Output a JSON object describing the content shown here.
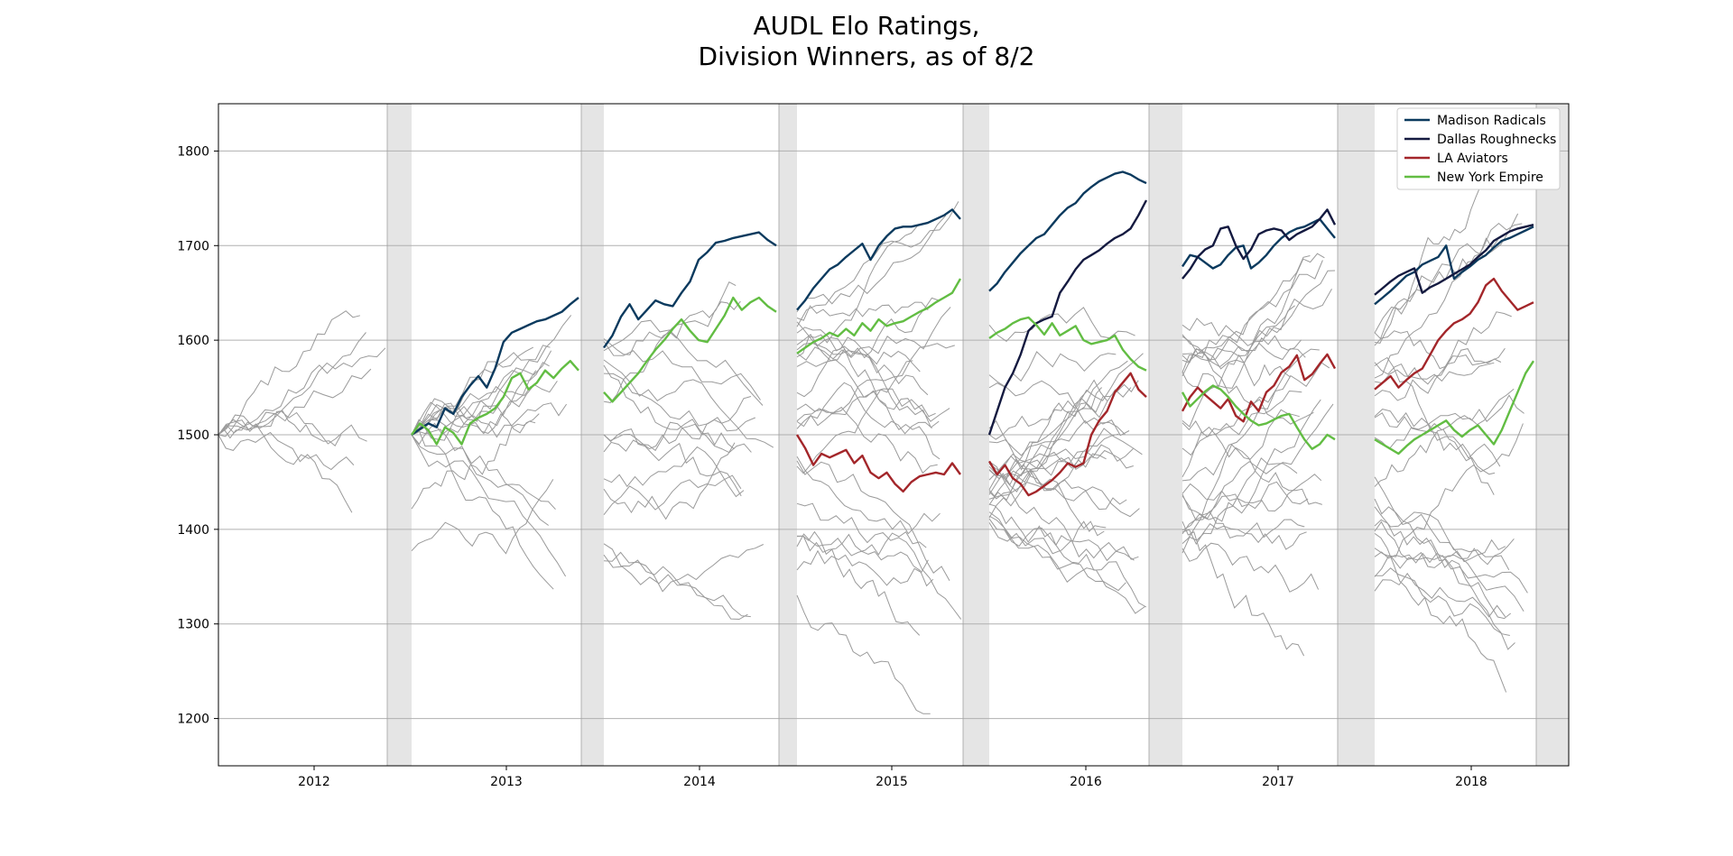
{
  "chart_data": {
    "type": "line",
    "title_lines": [
      "AUDL Elo Ratings,",
      "Division Winners, as of 8/2"
    ],
    "xlabel": "",
    "ylabel": "",
    "ylim": [
      1150,
      1850
    ],
    "y_ticks": [
      1200,
      1300,
      1400,
      1500,
      1600,
      1700,
      1800
    ],
    "seasons": [
      "2012",
      "2013",
      "2014",
      "2015",
      "2016",
      "2017",
      "2018"
    ],
    "grid": "horizontal",
    "legend_position": "top-right",
    "legend": [
      {
        "name": "Madison Radicals",
        "color": "#0b3a5e"
      },
      {
        "name": "Dallas Roughnecks",
        "color": "#141a40"
      },
      {
        "name": "LA Aviators",
        "color": "#a3262a"
      },
      {
        "name": "New York Empire",
        "color": "#62bd43"
      }
    ],
    "background_team_color": "#9a9a9a",
    "series": [
      {
        "name": "Madison Radicals",
        "season": "2013",
        "x": [
          0,
          0.1,
          0.15,
          0.2,
          0.25,
          0.3,
          0.35,
          0.4,
          0.45,
          0.5,
          0.55,
          0.6,
          0.65,
          0.7,
          0.75,
          0.8,
          0.85,
          0.9,
          0.95,
          1.0
        ],
        "y": [
          1500,
          1512,
          1508,
          1528,
          1522,
          1540,
          1552,
          1562,
          1550,
          1570,
          1598,
          1608,
          1612,
          1616,
          1620,
          1622,
          1626,
          1630,
          1638,
          1645
        ]
      },
      {
        "name": "Madison Radicals",
        "season": "2014",
        "x": [
          0,
          0.05,
          0.1,
          0.15,
          0.2,
          0.25,
          0.3,
          0.35,
          0.4,
          0.45,
          0.5,
          0.55,
          0.6,
          0.65,
          0.7,
          0.75,
          0.8,
          0.85,
          0.9,
          0.95,
          1.0
        ],
        "y": [
          1592,
          1605,
          1625,
          1638,
          1622,
          1632,
          1642,
          1638,
          1636,
          1650,
          1662,
          1685,
          1693,
          1703,
          1705,
          1708,
          1710,
          1712,
          1714,
          1706,
          1700
        ]
      },
      {
        "name": "Madison Radicals",
        "season": "2015",
        "x": [
          0,
          0.05,
          0.1,
          0.15,
          0.2,
          0.25,
          0.3,
          0.35,
          0.4,
          0.45,
          0.5,
          0.55,
          0.6,
          0.65,
          0.7,
          0.75,
          0.8,
          0.85,
          0.9,
          0.95,
          1.0
        ],
        "y": [
          1632,
          1642,
          1655,
          1665,
          1675,
          1680,
          1688,
          1695,
          1702,
          1685,
          1700,
          1710,
          1718,
          1720,
          1720,
          1722,
          1724,
          1728,
          1732,
          1738,
          1728
        ]
      },
      {
        "name": "Madison Radicals",
        "season": "2016",
        "x": [
          0,
          0.05,
          0.1,
          0.15,
          0.2,
          0.25,
          0.3,
          0.35,
          0.4,
          0.45,
          0.5,
          0.55,
          0.6,
          0.65,
          0.7,
          0.75,
          0.8,
          0.85,
          0.9,
          0.95,
          1.0
        ],
        "y": [
          1652,
          1660,
          1672,
          1682,
          1692,
          1700,
          1708,
          1712,
          1722,
          1732,
          1740,
          1745,
          1755,
          1762,
          1768,
          1772,
          1776,
          1778,
          1775,
          1770,
          1766
        ]
      },
      {
        "name": "Madison Radicals",
        "season": "2017",
        "x": [
          0,
          0.05,
          0.1,
          0.15,
          0.2,
          0.25,
          0.3,
          0.35,
          0.4,
          0.45,
          0.5,
          0.55,
          0.6,
          0.65,
          0.7,
          0.75,
          0.8,
          0.85,
          0.9,
          0.95,
          1.0
        ],
        "y": [
          1678,
          1690,
          1688,
          1682,
          1676,
          1680,
          1690,
          1698,
          1700,
          1676,
          1682,
          1690,
          1700,
          1708,
          1714,
          1718,
          1720,
          1724,
          1728,
          1718,
          1708
        ]
      },
      {
        "name": "Madison Radicals",
        "season": "2018",
        "x": [
          0,
          0.05,
          0.1,
          0.15,
          0.2,
          0.25,
          0.3,
          0.35,
          0.4,
          0.45,
          0.5,
          0.55,
          0.6,
          0.65,
          0.7,
          0.75,
          0.8,
          0.85,
          0.9,
          0.95,
          1.0
        ],
        "y": [
          1638,
          1645,
          1652,
          1660,
          1668,
          1672,
          1680,
          1684,
          1688,
          1700,
          1665,
          1672,
          1678,
          1685,
          1690,
          1698,
          1705,
          1708,
          1712,
          1716,
          1720
        ]
      },
      {
        "name": "Dallas Roughnecks",
        "season": "2016",
        "x": [
          0,
          0.05,
          0.1,
          0.15,
          0.2,
          0.25,
          0.3,
          0.35,
          0.4,
          0.45,
          0.5,
          0.55,
          0.6,
          0.65,
          0.7,
          0.75,
          0.8,
          0.85,
          0.9,
          0.95,
          1.0
        ],
        "y": [
          1500,
          1525,
          1550,
          1565,
          1585,
          1610,
          1618,
          1622,
          1625,
          1650,
          1662,
          1675,
          1685,
          1690,
          1695,
          1702,
          1708,
          1712,
          1718,
          1732,
          1748
        ]
      },
      {
        "name": "Dallas Roughnecks",
        "season": "2017",
        "x": [
          0,
          0.05,
          0.1,
          0.15,
          0.2,
          0.25,
          0.3,
          0.35,
          0.4,
          0.45,
          0.5,
          0.55,
          0.6,
          0.65,
          0.7,
          0.75,
          0.8,
          0.85,
          0.9,
          0.95,
          1.0
        ],
        "y": [
          1665,
          1675,
          1688,
          1696,
          1700,
          1718,
          1720,
          1700,
          1686,
          1696,
          1712,
          1716,
          1718,
          1716,
          1706,
          1712,
          1716,
          1720,
          1728,
          1738,
          1722
        ]
      },
      {
        "name": "Dallas Roughnecks",
        "season": "2018",
        "x": [
          0,
          0.05,
          0.1,
          0.15,
          0.2,
          0.25,
          0.3,
          0.35,
          0.4,
          0.45,
          0.5,
          0.55,
          0.6,
          0.65,
          0.7,
          0.75,
          0.8,
          0.85,
          0.9,
          0.95,
          1.0
        ],
        "y": [
          1648,
          1655,
          1662,
          1668,
          1672,
          1676,
          1650,
          1656,
          1660,
          1665,
          1670,
          1675,
          1680,
          1688,
          1695,
          1705,
          1710,
          1715,
          1718,
          1720,
          1722
        ]
      },
      {
        "name": "LA Aviators",
        "season": "2015",
        "x": [
          0,
          0.05,
          0.1,
          0.15,
          0.2,
          0.25,
          0.3,
          0.35,
          0.4,
          0.45,
          0.5,
          0.55,
          0.6,
          0.65,
          0.7,
          0.75,
          0.8,
          0.85,
          0.9,
          0.95,
          1.0
        ],
        "y": [
          1500,
          1486,
          1468,
          1480,
          1476,
          1480,
          1484,
          1470,
          1478,
          1460,
          1454,
          1460,
          1448,
          1440,
          1450,
          1456,
          1458,
          1460,
          1458,
          1470,
          1458
        ]
      },
      {
        "name": "LA Aviators",
        "season": "2016",
        "x": [
          0,
          0.05,
          0.1,
          0.15,
          0.2,
          0.25,
          0.3,
          0.35,
          0.4,
          0.45,
          0.5,
          0.55,
          0.6,
          0.65,
          0.7,
          0.75,
          0.8,
          0.85,
          0.9,
          0.95,
          1.0
        ],
        "y": [
          1472,
          1458,
          1468,
          1454,
          1448,
          1436,
          1440,
          1446,
          1452,
          1460,
          1470,
          1466,
          1470,
          1500,
          1515,
          1525,
          1545,
          1555,
          1565,
          1548,
          1540
        ]
      },
      {
        "name": "LA Aviators",
        "season": "2017",
        "x": [
          0,
          0.05,
          0.1,
          0.15,
          0.2,
          0.25,
          0.3,
          0.35,
          0.4,
          0.45,
          0.5,
          0.55,
          0.6,
          0.65,
          0.7,
          0.75,
          0.8,
          0.85,
          0.9,
          0.95,
          1.0
        ],
        "y": [
          1525,
          1540,
          1550,
          1542,
          1535,
          1528,
          1538,
          1520,
          1514,
          1535,
          1525,
          1545,
          1552,
          1566,
          1572,
          1584,
          1558,
          1564,
          1575,
          1585,
          1570
        ]
      },
      {
        "name": "LA Aviators",
        "season": "2018",
        "x": [
          0,
          0.05,
          0.1,
          0.15,
          0.2,
          0.25,
          0.3,
          0.35,
          0.4,
          0.45,
          0.5,
          0.55,
          0.6,
          0.65,
          0.7,
          0.75,
          0.8,
          0.85,
          0.9,
          0.95,
          1.0
        ],
        "y": [
          1548,
          1555,
          1562,
          1550,
          1558,
          1565,
          1570,
          1585,
          1600,
          1610,
          1618,
          1622,
          1628,
          1640,
          1658,
          1665,
          1652,
          1642,
          1632,
          1636,
          1640
        ]
      },
      {
        "name": "New York Empire",
        "season": "2013",
        "x": [
          0,
          0.05,
          0.1,
          0.15,
          0.2,
          0.25,
          0.3,
          0.35,
          0.4,
          0.45,
          0.5,
          0.55,
          0.6,
          0.65,
          0.7,
          0.75,
          0.8,
          0.85,
          0.9,
          0.95,
          1.0
        ],
        "y": [
          1500,
          1512,
          1505,
          1490,
          1508,
          1502,
          1490,
          1512,
          1518,
          1522,
          1528,
          1540,
          1560,
          1565,
          1548,
          1555,
          1568,
          1560,
          1570,
          1578,
          1568
        ]
      },
      {
        "name": "New York Empire",
        "season": "2014",
        "x": [
          0,
          0.05,
          0.1,
          0.15,
          0.2,
          0.25,
          0.3,
          0.35,
          0.4,
          0.45,
          0.5,
          0.55,
          0.6,
          0.65,
          0.7,
          0.75,
          0.8,
          0.85,
          0.9,
          0.95,
          1.0
        ],
        "y": [
          1545,
          1535,
          1545,
          1555,
          1565,
          1578,
          1590,
          1600,
          1612,
          1622,
          1610,
          1600,
          1598,
          1612,
          1626,
          1645,
          1632,
          1640,
          1645,
          1636,
          1630
        ]
      },
      {
        "name": "New York Empire",
        "season": "2015",
        "x": [
          0,
          0.05,
          0.1,
          0.15,
          0.2,
          0.25,
          0.3,
          0.35,
          0.4,
          0.45,
          0.5,
          0.55,
          0.6,
          0.65,
          0.7,
          0.75,
          0.8,
          0.85,
          0.9,
          0.95,
          1.0
        ],
        "y": [
          1586,
          1592,
          1598,
          1602,
          1608,
          1604,
          1612,
          1605,
          1618,
          1610,
          1622,
          1615,
          1618,
          1620,
          1625,
          1630,
          1634,
          1640,
          1645,
          1650,
          1665
        ]
      },
      {
        "name": "New York Empire",
        "season": "2016",
        "x": [
          0,
          0.05,
          0.1,
          0.15,
          0.2,
          0.25,
          0.3,
          0.35,
          0.4,
          0.45,
          0.5,
          0.55,
          0.6,
          0.65,
          0.7,
          0.75,
          0.8,
          0.85,
          0.9,
          0.95,
          1.0
        ],
        "y": [
          1602,
          1608,
          1612,
          1618,
          1622,
          1624,
          1616,
          1606,
          1618,
          1605,
          1610,
          1615,
          1600,
          1596,
          1598,
          1600,
          1605,
          1590,
          1580,
          1572,
          1568
        ]
      },
      {
        "name": "New York Empire",
        "season": "2017",
        "x": [
          0,
          0.05,
          0.1,
          0.15,
          0.2,
          0.25,
          0.3,
          0.35,
          0.4,
          0.45,
          0.5,
          0.55,
          0.6,
          0.65,
          0.7,
          0.75,
          0.8,
          0.85,
          0.9,
          0.95,
          1.0
        ],
        "y": [
          1545,
          1530,
          1538,
          1546,
          1552,
          1548,
          1540,
          1530,
          1522,
          1515,
          1510,
          1512,
          1516,
          1520,
          1522,
          1508,
          1495,
          1485,
          1490,
          1500,
          1495
        ]
      },
      {
        "name": "New York Empire",
        "season": "2018",
        "x": [
          0,
          0.05,
          0.1,
          0.15,
          0.2,
          0.25,
          0.3,
          0.35,
          0.4,
          0.45,
          0.5,
          0.55,
          0.6,
          0.65,
          0.7,
          0.75,
          0.8,
          0.85,
          0.9,
          0.95,
          1.0
        ],
        "y": [
          1495,
          1490,
          1485,
          1480,
          1488,
          1495,
          1500,
          1505,
          1510,
          1515,
          1505,
          1498,
          1505,
          1510,
          1500,
          1490,
          1505,
          1525,
          1545,
          1565,
          1578
        ]
      }
    ]
  }
}
